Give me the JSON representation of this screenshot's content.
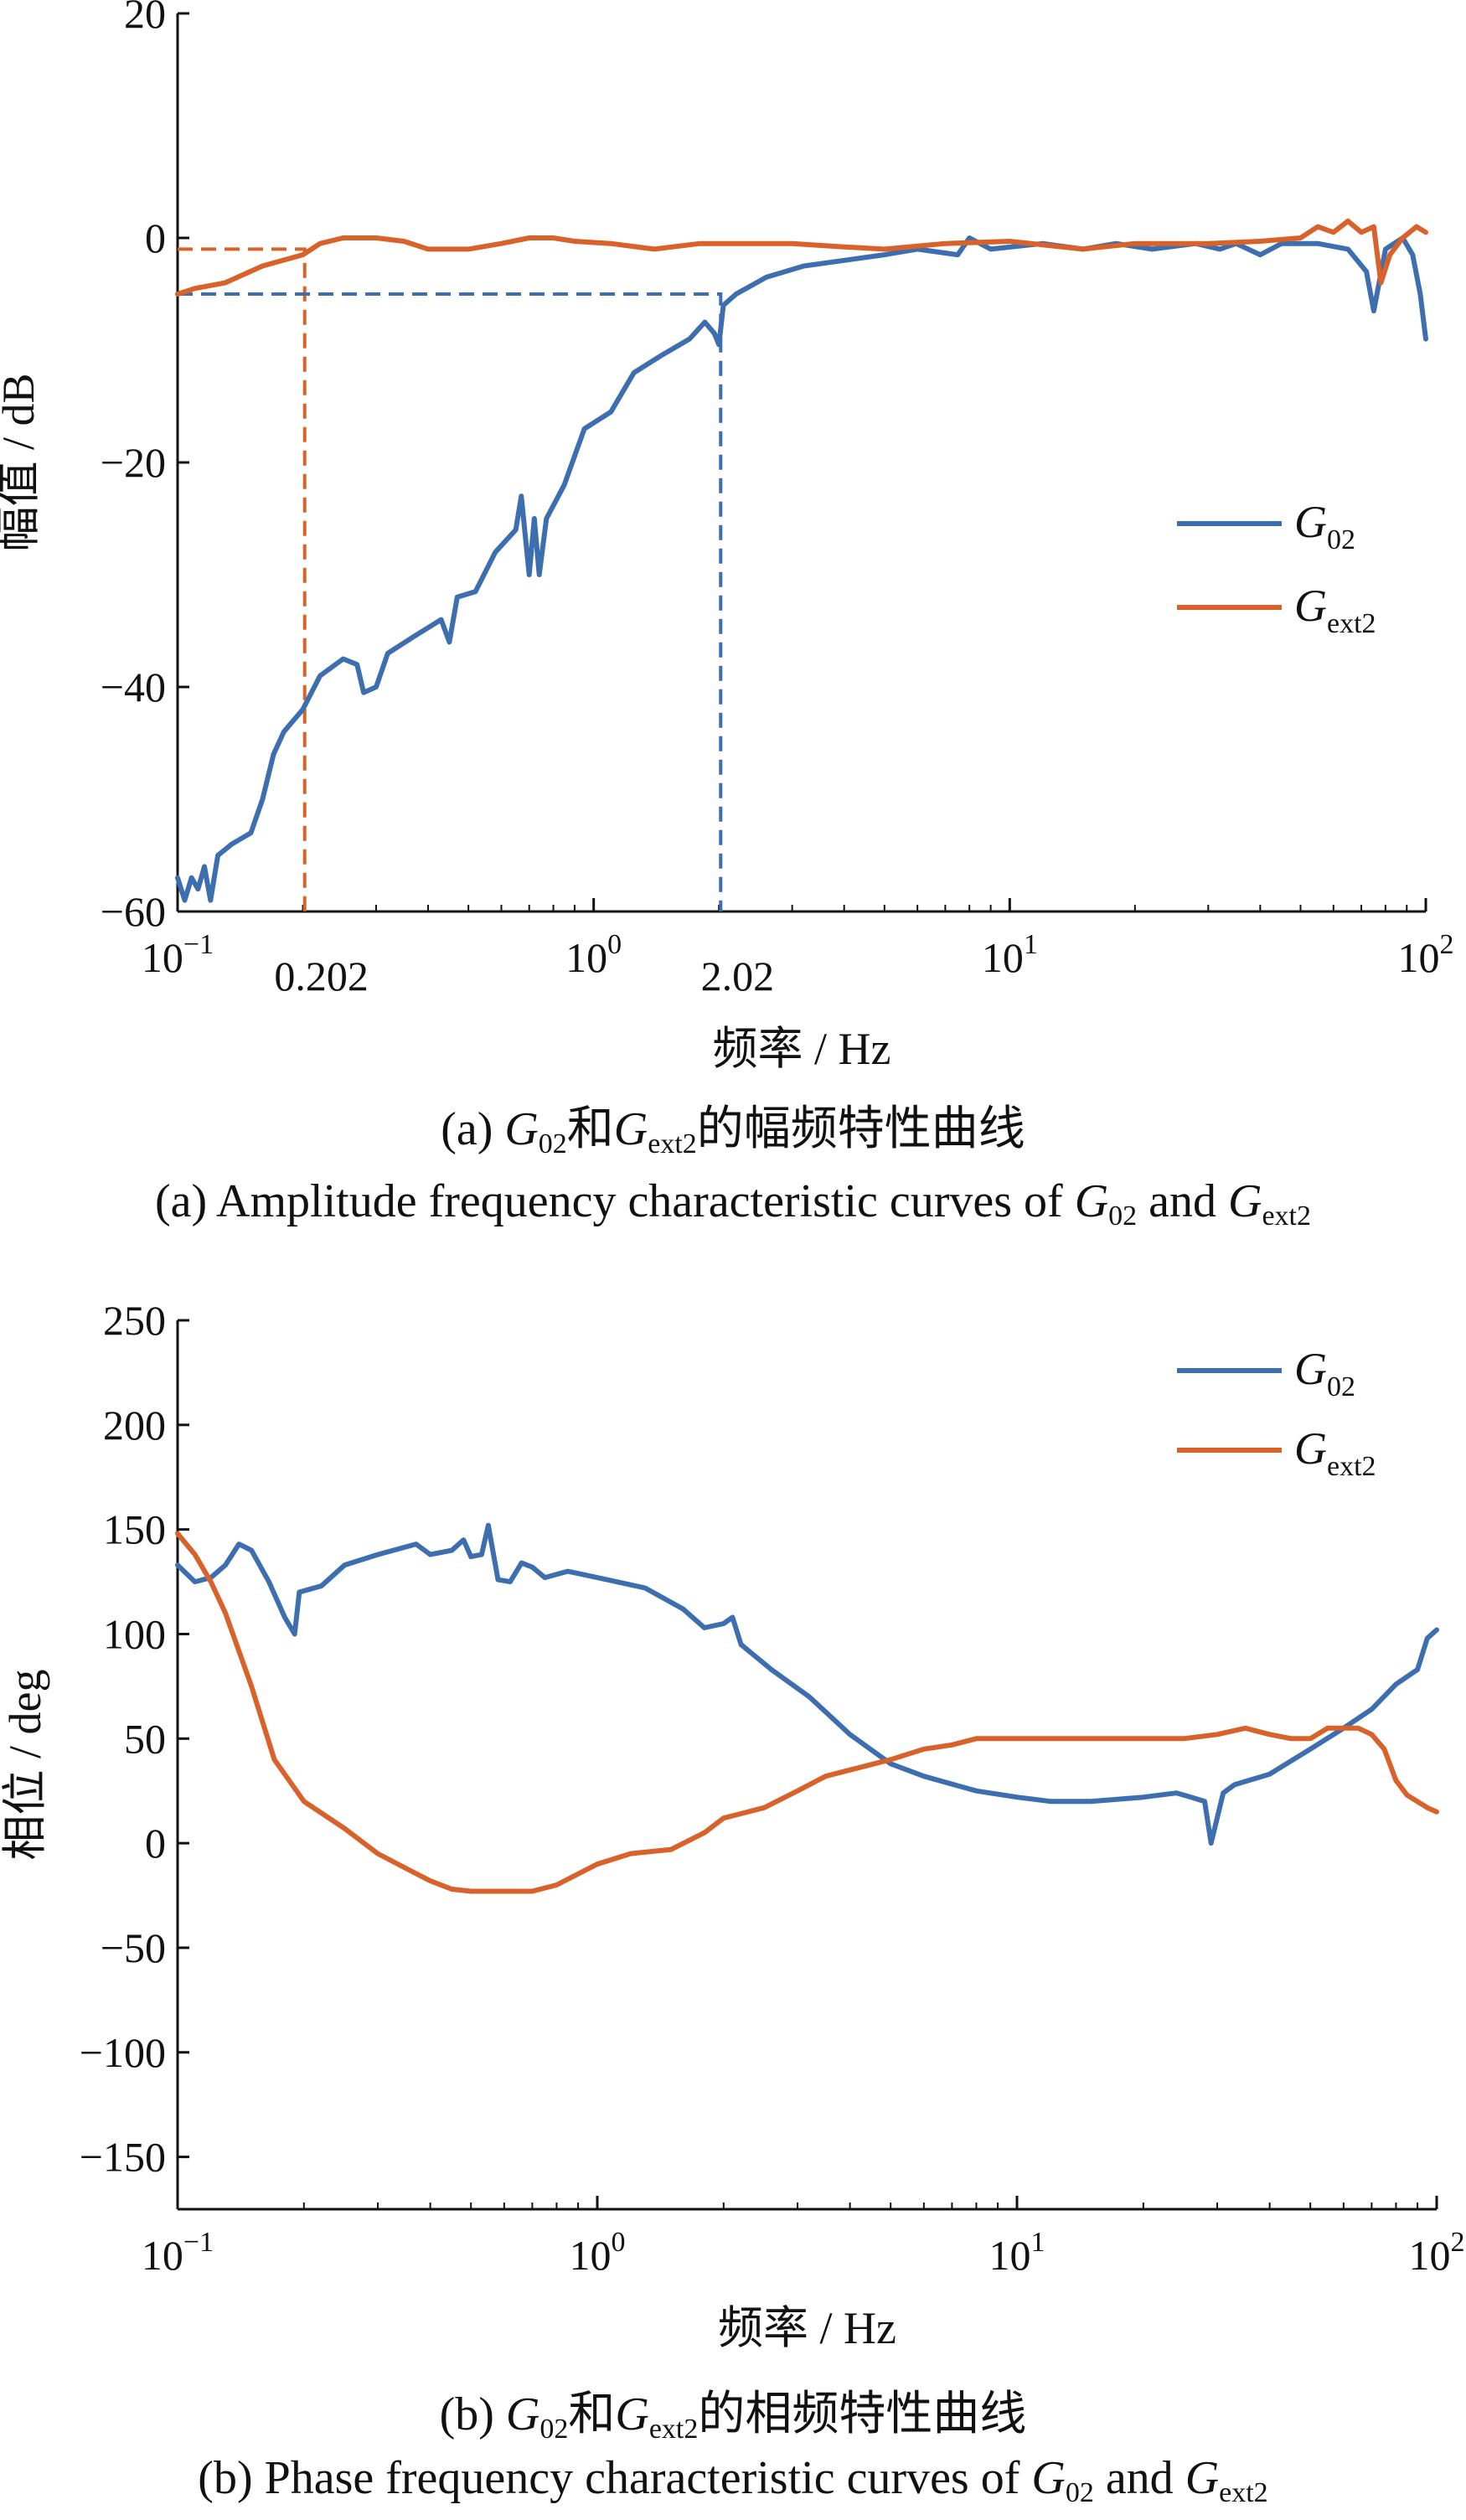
{
  "chart_data": [
    {
      "type": "line",
      "title": "",
      "xlabel": "频率 / Hz",
      "ylabel": "幅值 / dB",
      "xscale": "log",
      "xlim": [
        0.1,
        100
      ],
      "ylim": [
        -60,
        20
      ],
      "xticks": [
        0.1,
        1,
        10,
        100
      ],
      "xticklabels": [
        {
          "base": "10",
          "exp": "−1"
        },
        {
          "base": "10",
          "exp": "0"
        },
        {
          "base": "10",
          "exp": "1"
        },
        {
          "base": "10",
          "exp": "2"
        }
      ],
      "yticks": [
        20,
        0,
        -20,
        -40,
        -60
      ],
      "yticklabels": [
        "20",
        "0",
        "−20",
        "−40",
        "−60"
      ],
      "extra_xticklabels": [
        {
          "x": 0.202,
          "label": "0.202"
        },
        {
          "x": 2.02,
          "label": "2.02"
        }
      ],
      "grid": false,
      "legend": {
        "position": "right",
        "entries": [
          {
            "main": "G",
            "sub": "02",
            "color": "#3d6fb0"
          },
          {
            "main": "G",
            "sub": "ext2",
            "color": "#d9622b"
          }
        ]
      },
      "series": [
        {
          "name": "G02",
          "color": "#3d6fb0",
          "points": [
            [
              0.1,
              -57
            ],
            [
              0.104,
              -59
            ],
            [
              0.108,
              -57
            ],
            [
              0.112,
              -58
            ],
            [
              0.116,
              -56
            ],
            [
              0.12,
              -59
            ],
            [
              0.125,
              -55
            ],
            [
              0.135,
              -54
            ],
            [
              0.15,
              -53
            ],
            [
              0.16,
              -50
            ],
            [
              0.17,
              -46
            ],
            [
              0.18,
              -44
            ],
            [
              0.2,
              -42
            ],
            [
              0.22,
              -39
            ],
            [
              0.25,
              -37.5
            ],
            [
              0.27,
              -38
            ],
            [
              0.28,
              -40.5
            ],
            [
              0.3,
              -40
            ],
            [
              0.32,
              -37
            ],
            [
              0.37,
              -35.5
            ],
            [
              0.43,
              -34
            ],
            [
              0.45,
              -36
            ],
            [
              0.47,
              -32
            ],
            [
              0.52,
              -31.5
            ],
            [
              0.58,
              -28
            ],
            [
              0.65,
              -26
            ],
            [
              0.67,
              -23
            ],
            [
              0.7,
              -30
            ],
            [
              0.72,
              -25
            ],
            [
              0.74,
              -30
            ],
            [
              0.77,
              -25
            ],
            [
              0.85,
              -22
            ],
            [
              0.95,
              -17
            ],
            [
              1.1,
              -15.5
            ],
            [
              1.25,
              -12
            ],
            [
              1.45,
              -10.5
            ],
            [
              1.7,
              -9
            ],
            [
              1.85,
              -7.5
            ],
            [
              1.95,
              -8.5
            ],
            [
              2.0,
              -9.5
            ],
            [
              2.05,
              -6
            ],
            [
              2.2,
              -5
            ],
            [
              2.6,
              -3.5
            ],
            [
              3.2,
              -2.5
            ],
            [
              4,
              -2
            ],
            [
              5,
              -1.5
            ],
            [
              6,
              -1
            ],
            [
              7.5,
              -1.5
            ],
            [
              8,
              0
            ],
            [
              9,
              -1
            ],
            [
              12,
              -0.5
            ],
            [
              15,
              -1
            ],
            [
              18,
              -0.5
            ],
            [
              22,
              -1
            ],
            [
              28,
              -0.5
            ],
            [
              32,
              -1
            ],
            [
              35,
              -0.5
            ],
            [
              40,
              -1.5
            ],
            [
              45,
              -0.5
            ],
            [
              55,
              -0.5
            ],
            [
              65,
              -1
            ],
            [
              72,
              -3
            ],
            [
              75,
              -6.5
            ],
            [
              80,
              -1
            ],
            [
              88,
              0
            ],
            [
              93,
              -1.5
            ],
            [
              97,
              -5
            ],
            [
              100,
              -9
            ]
          ]
        },
        {
          "name": "Gext2",
          "color": "#d9622b",
          "points": [
            [
              0.1,
              -5
            ],
            [
              0.11,
              -4.5
            ],
            [
              0.13,
              -4
            ],
            [
              0.16,
              -2.5
            ],
            [
              0.2,
              -1.5
            ],
            [
              0.22,
              -0.5
            ],
            [
              0.25,
              0
            ],
            [
              0.3,
              0
            ],
            [
              0.35,
              -0.3
            ],
            [
              0.4,
              -1
            ],
            [
              0.5,
              -1
            ],
            [
              0.6,
              -0.5
            ],
            [
              0.7,
              0
            ],
            [
              0.8,
              0
            ],
            [
              0.9,
              -0.3
            ],
            [
              1.1,
              -0.5
            ],
            [
              1.4,
              -1
            ],
            [
              1.8,
              -0.5
            ],
            [
              2.2,
              -0.5
            ],
            [
              3,
              -0.5
            ],
            [
              4,
              -0.8
            ],
            [
              5,
              -1
            ],
            [
              7,
              -0.5
            ],
            [
              10,
              -0.3
            ],
            [
              15,
              -1
            ],
            [
              20,
              -0.5
            ],
            [
              30,
              -0.5
            ],
            [
              40,
              -0.3
            ],
            [
              50,
              0
            ],
            [
              55,
              1
            ],
            [
              60,
              0.5
            ],
            [
              65,
              1.5
            ],
            [
              70,
              0.5
            ],
            [
              75,
              1
            ],
            [
              78,
              -4
            ],
            [
              82,
              -1.5
            ],
            [
              88,
              0
            ],
            [
              95,
              1
            ],
            [
              100,
              0.5
            ]
          ]
        }
      ],
      "reference_lines": [
        {
          "color": "#d9622b",
          "points": [
            [
              0.1,
              -1
            ],
            [
              0.202,
              -1
            ],
            [
              0.202,
              -60
            ]
          ]
        },
        {
          "color": "#3d6fb0",
          "points": [
            [
              0.1,
              -5
            ],
            [
              2.02,
              -5
            ],
            [
              2.02,
              -60
            ]
          ]
        }
      ]
    },
    {
      "type": "line",
      "title": "",
      "xlabel": "频率 / Hz",
      "ylabel": "相位 / deg",
      "xscale": "log",
      "xlim": [
        0.1,
        100
      ],
      "ylim": [
        -175,
        250
      ],
      "xticks": [
        0.1,
        1,
        10,
        100
      ],
      "xticklabels": [
        {
          "base": "10",
          "exp": "−1"
        },
        {
          "base": "10",
          "exp": "0"
        },
        {
          "base": "10",
          "exp": "1"
        },
        {
          "base": "10",
          "exp": "2"
        }
      ],
      "yticks": [
        250,
        200,
        150,
        100,
        50,
        0,
        -50,
        -100,
        -150
      ],
      "yticklabels": [
        "250",
        "200",
        "150",
        "100",
        "50",
        "0",
        "−50",
        "−100",
        "−150"
      ],
      "grid": false,
      "legend": {
        "position": "top-right",
        "entries": [
          {
            "main": "G",
            "sub": "02",
            "color": "#3d6fb0"
          },
          {
            "main": "G",
            "sub": "ext2",
            "color": "#d9622b"
          }
        ]
      },
      "series": [
        {
          "name": "G02",
          "color": "#3d6fb0",
          "points": [
            [
              0.1,
              133
            ],
            [
              0.11,
              125
            ],
            [
              0.12,
              127
            ],
            [
              0.13,
              133
            ],
            [
              0.14,
              143
            ],
            [
              0.15,
              140
            ],
            [
              0.165,
              125
            ],
            [
              0.18,
              108
            ],
            [
              0.19,
              100
            ],
            [
              0.195,
              120
            ],
            [
              0.22,
              123
            ],
            [
              0.25,
              133
            ],
            [
              0.3,
              138
            ],
            [
              0.37,
              143
            ],
            [
              0.4,
              138
            ],
            [
              0.45,
              140
            ],
            [
              0.48,
              145
            ],
            [
              0.5,
              137
            ],
            [
              0.53,
              138
            ],
            [
              0.55,
              152
            ],
            [
              0.58,
              126
            ],
            [
              0.62,
              125
            ],
            [
              0.66,
              134
            ],
            [
              0.7,
              132
            ],
            [
              0.75,
              127
            ],
            [
              0.85,
              130
            ],
            [
              1.0,
              127
            ],
            [
              1.3,
              122
            ],
            [
              1.6,
              112
            ],
            [
              1.8,
              103
            ],
            [
              2.0,
              105
            ],
            [
              2.1,
              108
            ],
            [
              2.2,
              95
            ],
            [
              2.6,
              83
            ],
            [
              3.2,
              70
            ],
            [
              4,
              52
            ],
            [
              5,
              38
            ],
            [
              6,
              32
            ],
            [
              8,
              25
            ],
            [
              10,
              22
            ],
            [
              12,
              20
            ],
            [
              15,
              20
            ],
            [
              20,
              22
            ],
            [
              24,
              24
            ],
            [
              26,
              22
            ],
            [
              28,
              20
            ],
            [
              29,
              0
            ],
            [
              31,
              24
            ],
            [
              33,
              28
            ],
            [
              40,
              33
            ],
            [
              50,
              45
            ],
            [
              60,
              55
            ],
            [
              70,
              64
            ],
            [
              80,
              76
            ],
            [
              90,
              83
            ],
            [
              95,
              98
            ],
            [
              100,
              102
            ]
          ]
        },
        {
          "name": "Gext2",
          "color": "#d9622b",
          "points": [
            [
              0.1,
              148
            ],
            [
              0.11,
              138
            ],
            [
              0.12,
              125
            ],
            [
              0.13,
              110
            ],
            [
              0.15,
              75
            ],
            [
              0.17,
              40
            ],
            [
              0.2,
              20
            ],
            [
              0.25,
              7
            ],
            [
              0.3,
              -5
            ],
            [
              0.35,
              -12
            ],
            [
              0.4,
              -18
            ],
            [
              0.45,
              -22
            ],
            [
              0.5,
              -23
            ],
            [
              0.6,
              -23
            ],
            [
              0.7,
              -23
            ],
            [
              0.8,
              -20
            ],
            [
              1.0,
              -10
            ],
            [
              1.2,
              -5
            ],
            [
              1.5,
              -3
            ],
            [
              1.8,
              5
            ],
            [
              2.0,
              12
            ],
            [
              2.5,
              17
            ],
            [
              3,
              25
            ],
            [
              3.5,
              32
            ],
            [
              4,
              35
            ],
            [
              5,
              40
            ],
            [
              6,
              45
            ],
            [
              7,
              47
            ],
            [
              8,
              50
            ],
            [
              10,
              50
            ],
            [
              15,
              50
            ],
            [
              20,
              50
            ],
            [
              25,
              50
            ],
            [
              30,
              52
            ],
            [
              35,
              55
            ],
            [
              40,
              52
            ],
            [
              45,
              50
            ],
            [
              50,
              50
            ],
            [
              55,
              55
            ],
            [
              60,
              55
            ],
            [
              65,
              55
            ],
            [
              70,
              52
            ],
            [
              75,
              45
            ],
            [
              80,
              30
            ],
            [
              85,
              23
            ],
            [
              95,
              17
            ],
            [
              100,
              15
            ]
          ]
        }
      ],
      "reference_lines": []
    }
  ],
  "captions": {
    "a_cn": {
      "pre": "(a) ",
      "g1": "G",
      "s1": "02",
      "mid": "和",
      "g2": "G",
      "s2": "ext2",
      "post": "的幅频特性曲线"
    },
    "a_en": {
      "pre": "(a) Amplitude frequency characteristic curves of ",
      "g1": "G",
      "s1": "02",
      "mid": " and ",
      "g2": "G",
      "s2": "ext2",
      "post": ""
    },
    "b_cn": {
      "pre": "(b) ",
      "g1": "G",
      "s1": "02",
      "mid": "和",
      "g2": "G",
      "s2": "ext2",
      "post": "的相频特性曲线"
    },
    "b_en": {
      "pre": "(b) Phase frequency characteristic curves of ",
      "g1": "G",
      "s1": "02",
      "mid": " and ",
      "g2": "G",
      "s2": "ext2",
      "post": ""
    }
  }
}
